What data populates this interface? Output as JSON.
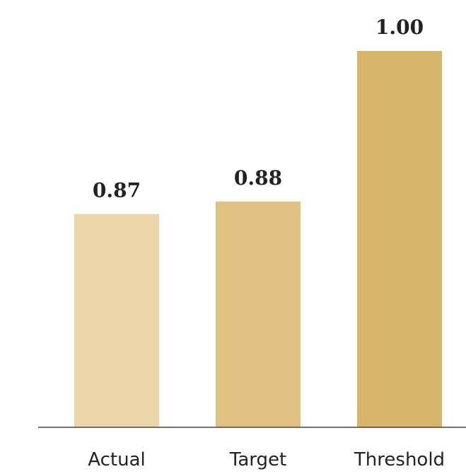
{
  "chart_data": {
    "type": "bar",
    "title": "",
    "xlabel": "",
    "ylabel": "",
    "categories": [
      "Actual",
      "Target",
      "Threshold"
    ],
    "values": [
      0.87,
      0.88,
      1.0
    ],
    "value_labels": [
      "0.87",
      "0.88",
      "1.00"
    ],
    "ylim": [
      0.7,
      1.0
    ],
    "grid": false,
    "legend": "none",
    "colors": [
      "#ecd5a9",
      "#e0c384",
      "#d9b56b"
    ]
  }
}
